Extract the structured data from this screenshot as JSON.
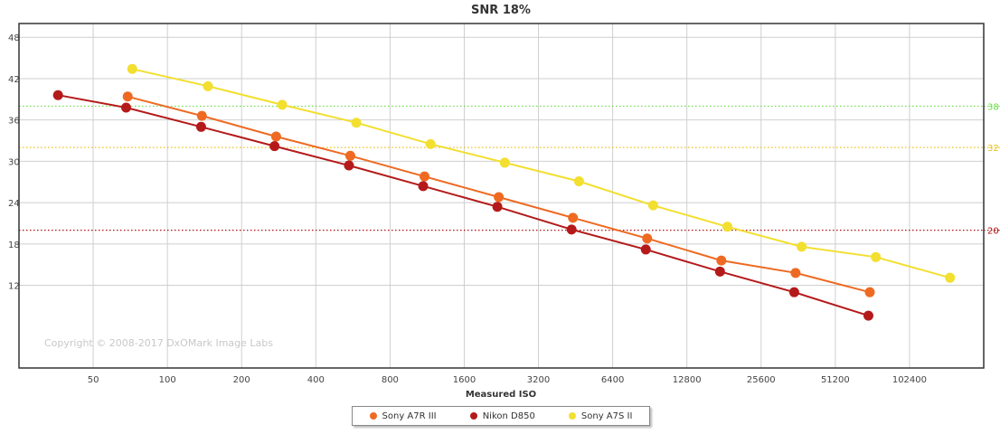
{
  "chart_data": {
    "type": "line",
    "title": "SNR 18%",
    "xlabel": "Measured ISO",
    "ylabel": "",
    "x_scale": "log2",
    "xlim": [
      25,
      204800
    ],
    "ylim": [
      0,
      50
    ],
    "x_ticks": [
      50,
      100,
      200,
      400,
      800,
      1600,
      3200,
      6400,
      12800,
      25600,
      51200,
      102400
    ],
    "y_ticks": [
      12,
      18,
      24,
      30,
      36,
      42,
      48
    ],
    "watermark": "Copyright © 2008-2017 DxOMark Image Labs",
    "reference_lines": [
      {
        "value": 38,
        "label": "38",
        "color": "#66dd44"
      },
      {
        "value": 32,
        "label": "32",
        "color": "#e8c020"
      },
      {
        "value": 20,
        "label": "20",
        "color": "#b01010"
      }
    ],
    "series": [
      {
        "name": "Sony A7R III",
        "color": "#ee6a22",
        "x": [
          69,
          138,
          276,
          552,
          1104,
          2208,
          4416,
          8832,
          17664,
          35328,
          70656
        ],
        "y": [
          39.4,
          36.6,
          33.6,
          30.8,
          27.8,
          24.8,
          21.8,
          18.8,
          15.6,
          13.8,
          11.0
        ]
      },
      {
        "name": "Nikon D850",
        "color": "#b41a1a",
        "x": [
          36,
          68,
          137,
          272,
          545,
          1090,
          2180,
          4360,
          8720,
          17440,
          34880,
          69760
        ],
        "y": [
          39.6,
          37.8,
          35.0,
          32.2,
          29.4,
          26.4,
          23.4,
          20.1,
          17.2,
          14.0,
          11.0,
          7.6
        ]
      },
      {
        "name": "Sony A7S II",
        "color": "#f2df30",
        "x": [
          72,
          146,
          292,
          584,
          1168,
          2336,
          4672,
          9344,
          18688,
          37376,
          74752,
          149504
        ],
        "y": [
          43.4,
          40.9,
          38.2,
          35.6,
          32.5,
          29.8,
          27.1,
          23.6,
          20.5,
          17.6,
          16.1,
          13.1
        ]
      }
    ]
  }
}
